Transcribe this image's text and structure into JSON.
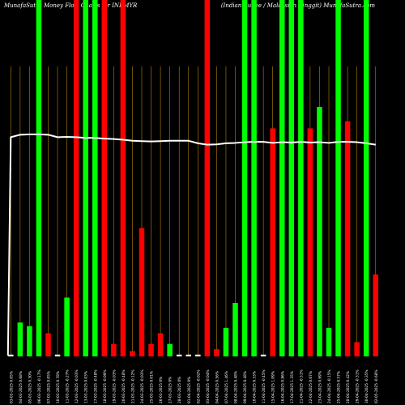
{
  "header": {
    "left_title": "MunafaSutra  Money Flow Charts for INRMYR",
    "right_title": "(Indian Rupee  / Malaysian Ringgit)  MunafaSutra.com"
  },
  "colors": {
    "background": "#000000",
    "up": "#00ff00",
    "down": "#ff0000",
    "neutral": "#ffffff",
    "gridline": "#b8860b",
    "average_line": "#ffffff",
    "tick_text": "#ffffff"
  },
  "chart_data": {
    "type": "bar",
    "description_note": "",
    "ylim": [
      0,
      100
    ],
    "categories": [
      "03-03-2025 0.05%",
      "04-03-2025 0.68%",
      "05-03-2025 0.30%",
      "06-03-2025 -0.17%",
      "07-03-2025 0.05%",
      "10-03-2025 0.78%",
      "11-03-2025 -0.27%",
      "12-03-2025 -0.03%",
      "13-03-2025 0.03%",
      "17-03-2025 -0.48%",
      "18-03-2025 -0.09%",
      "19-03-2025 -0.03%",
      "20-03-2025 -0.48%",
      "21-03-2025 -0.12%",
      "24-03-2025 -0.03%",
      "25-03-2025 0.01%",
      "26-03-2025 0%",
      "27-03-2025 0%",
      "28-03-2025 0%",
      "01-04-2025 0%",
      "02-04-2025 -0.02%",
      "03-04-2025 -0.04%",
      "04-04-2025 0.56%",
      "07-04-2025 1.46%",
      "08-04-2025 0.48%",
      "09-04-2025 0.48%",
      "10-04-2025 0.33%",
      "11-04-2025 -0.45%",
      "15-04-2025 1.09%",
      "16-04-2025 0.86%",
      "17-04-2025 1.35%",
      "21-04-2025 -0.51%",
      "22-04-2025 0.07%",
      "23-04-2025 0.69%",
      "24-04-2025 -0.15%",
      "25-04-2025 0.57%",
      "28-04-2025 0.42%",
      "29-04-2025 -0.31%",
      "30-04-2025 -0.35%",
      "02-05-2025 -0.68%"
    ],
    "series": [
      {
        "values": [
          0.5,
          9.5,
          8.5,
          100,
          6.5,
          0.5,
          16.5,
          100,
          100,
          100,
          100,
          3.5,
          100,
          1.5,
          36,
          3.5,
          6.5,
          3.5,
          0.5,
          0.5,
          0.5,
          100,
          2,
          8,
          15,
          100,
          100,
          0.5,
          64,
          100,
          100,
          100,
          64,
          70,
          8,
          100,
          66,
          4,
          100,
          23
        ],
        "colors": [
          "white",
          "green",
          "green",
          "green",
          "red",
          "white",
          "green",
          "red",
          "green",
          "green",
          "red",
          "red",
          "red",
          "red",
          "red",
          "red",
          "red",
          "green",
          "white",
          "white",
          "white",
          "red",
          "red",
          "green",
          "green",
          "green",
          "green",
          "white",
          "red",
          "green",
          "green",
          "green",
          "red",
          "green",
          "green",
          "green",
          "red",
          "red",
          "green",
          "red"
        ]
      },
      {
        "type": "line",
        "values": [
          61.5,
          62.2,
          62.3,
          62.3,
          62.2,
          61.5,
          61.6,
          61.5,
          61.3,
          61.3,
          61.1,
          61.0,
          60.8,
          60.5,
          60.4,
          60.3,
          60.4,
          60.5,
          60.5,
          60.5,
          59.8,
          59.4,
          59.5,
          59.8,
          59.9,
          60.1,
          60.2,
          60.2,
          59.9,
          60.1,
          60.0,
          60.2,
          60.0,
          60.1,
          59.9,
          60.2,
          60.2,
          60.1,
          59.8,
          59.4
        ]
      }
    ],
    "grid": true
  }
}
